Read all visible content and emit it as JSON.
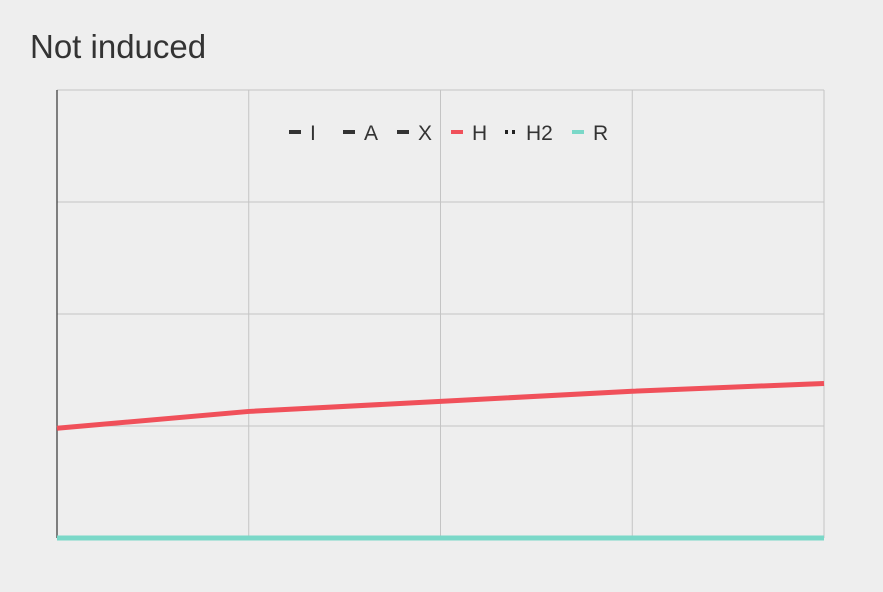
{
  "chart_data": {
    "type": "line",
    "title": "Not induced",
    "xlabel": "",
    "ylabel": "",
    "xlim": [
      0,
      4
    ],
    "ylim": [
      0,
      4
    ],
    "grid": true,
    "legend_position": "top-center",
    "x": [
      0,
      1,
      2,
      3,
      4
    ],
    "series": [
      {
        "name": "I",
        "color": "#333333",
        "style": "dash",
        "values": [
          0,
          0,
          0,
          0,
          0
        ]
      },
      {
        "name": "A",
        "color": "#333333",
        "style": "dash",
        "values": [
          0,
          0,
          0,
          0,
          0
        ]
      },
      {
        "name": "X",
        "color": "#333333",
        "style": "dash",
        "values": [
          0,
          0,
          0,
          0,
          0
        ]
      },
      {
        "name": "H",
        "color": "#f0505a",
        "style": "solid",
        "values": [
          0.98,
          1.13,
          1.22,
          1.31,
          1.38
        ]
      },
      {
        "name": "H2",
        "color": "#222222",
        "style": "dot",
        "values": [
          0,
          0,
          0,
          0,
          0
        ]
      },
      {
        "name": "R",
        "color": "#7ad8c8",
        "style": "solid",
        "values": [
          0,
          0,
          0,
          0,
          0
        ]
      }
    ]
  }
}
